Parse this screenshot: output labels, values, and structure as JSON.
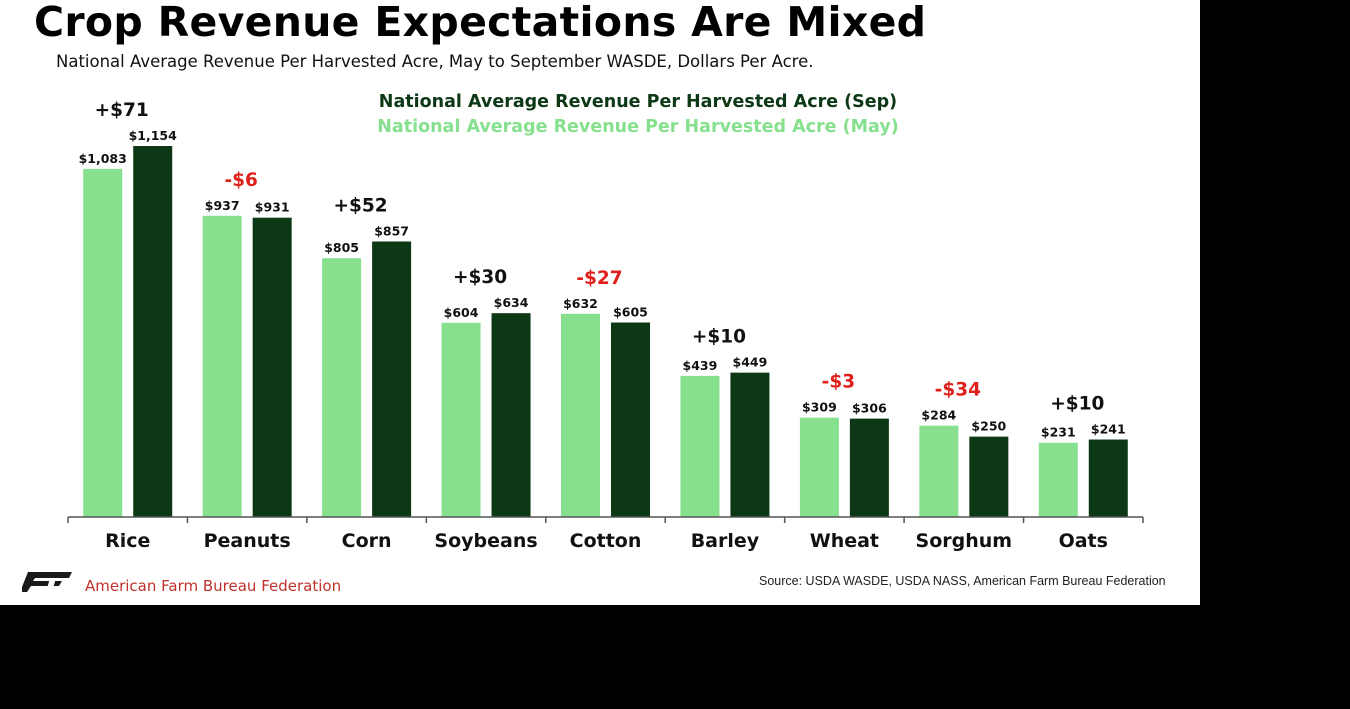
{
  "header": {
    "title": "Crop Revenue Expectations Are Mixed",
    "subtitle": "National Average Revenue Per Harvested Acre, May to September WASDE, Dollars Per Acre."
  },
  "chart_data": {
    "type": "bar",
    "title": "Crop Revenue Expectations Are Mixed",
    "subtitle": "National Average Revenue Per Harvested Acre, May to September WASDE, Dollars Per Acre.",
    "xlabel": "",
    "ylabel": "",
    "ylim": [
      0,
      1200
    ],
    "grid": false,
    "legend_position": "top-center",
    "categories": [
      "Rice",
      "Peanuts",
      "Corn",
      "Soybeans",
      "Cotton",
      "Barley",
      "Wheat",
      "Sorghum",
      "Oats"
    ],
    "series": [
      {
        "name": "National Average Revenue Per Harvested Acre (May)",
        "color": "#86e08e",
        "values": [
          1083,
          937,
          805,
          604,
          632,
          439,
          309,
          284,
          231
        ],
        "labels": [
          "$1,083",
          "$937",
          "$805",
          "$604",
          "$632",
          "$439",
          "$309",
          "$284",
          "$231"
        ]
      },
      {
        "name": "National Average Revenue Per Harvested Acre (Sep)",
        "color": "#0d3815",
        "values": [
          1154,
          931,
          857,
          634,
          605,
          449,
          306,
          250,
          241
        ],
        "labels": [
          "$1,154",
          "$931",
          "$857",
          "$634",
          "$605",
          "$449",
          "$306",
          "$250",
          "$241"
        ]
      }
    ],
    "annotations": [
      "+$71",
      "-$6",
      "+$52",
      "+$30",
      "-$27",
      "+$10",
      "-$3",
      "-$34",
      "+$10"
    ],
    "annotation_colors": {
      "positive": "#111111",
      "negative": "#e0211b"
    },
    "legend_colors": {
      "sep": "#0d3815",
      "may": "#86e08e"
    }
  },
  "footer": {
    "organization": "American Farm Bureau Federation",
    "source": "Source: USDA WASDE, USDA NASS, American Farm Bureau Federation",
    "logo_icon": "afbf-logo-icon",
    "logo_color": "#1a1a1a"
  }
}
